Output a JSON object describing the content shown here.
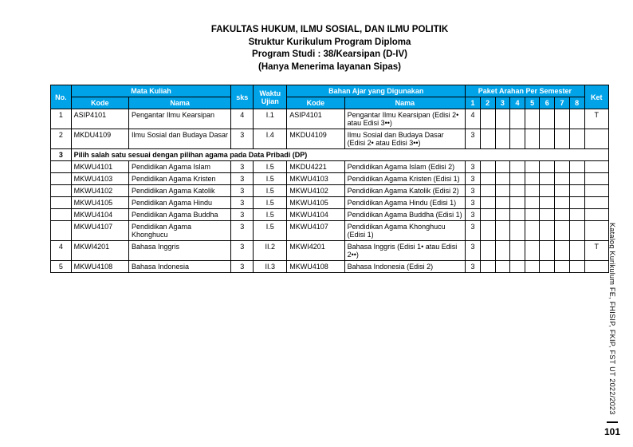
{
  "header": {
    "line1": "FAKULTAS HUKUM, ILMU SOSIAL, DAN ILMU POLITIK",
    "line2": "Struktur Kurikulum Program Diploma",
    "line3": "Program Studi : 38/Kearsipan (D-IV)",
    "line4": "(Hanya Menerima layanan Sipas)"
  },
  "columns": {
    "no": "No.",
    "mata_kuliah": "Mata Kuliah",
    "kode": "Kode",
    "nama": "Nama",
    "sks": "sks",
    "waktu": "Waktu Ujian",
    "bahan": "Bahan Ajar yang Digunakan",
    "paket": "Paket Arahan Per Semester",
    "ket": "Ket",
    "sem": [
      "1",
      "2",
      "3",
      "4",
      "5",
      "6",
      "7",
      "8"
    ]
  },
  "rows": [
    {
      "no": "1",
      "kode1": "ASIP4101",
      "nama1": "Pengantar Ilmu Kearsipan",
      "sks": "4",
      "waktu": "I.1",
      "kode2": "ASIP4101",
      "nama2": "Pengantar Ilmu Kearsipan (Edisi 2• atau Edisi 3••)",
      "sem": [
        "4",
        "",
        "",
        "",
        "",
        "",
        "",
        ""
      ],
      "ket": "T"
    },
    {
      "no": "2",
      "kode1": "MKDU4109",
      "nama1": "Ilmu Sosial dan Budaya Dasar",
      "sks": "3",
      "waktu": "I.4",
      "kode2": "MKDU4109",
      "nama2": "Ilmu Sosial dan Budaya Dasar (Edisi 2• atau Edisi 3••)",
      "sem": [
        "3",
        "",
        "",
        "",
        "",
        "",
        "",
        ""
      ],
      "ket": ""
    },
    {
      "section": "3",
      "label": "Pilih salah satu sesuai dengan pilihan agama pada Data Pribadi (DP)"
    },
    {
      "no": "",
      "kode1": "MKWU4101",
      "nama1": "Pendidikan Agama Islam",
      "sks": "3",
      "waktu": "I.5",
      "kode2": "MKDU4221",
      "nama2": "Pendidikan Agama Islam (Edisi 2)",
      "sem": [
        "3",
        "",
        "",
        "",
        "",
        "",
        "",
        ""
      ],
      "ket": ""
    },
    {
      "no": "",
      "kode1": "MKWU4103",
      "nama1": "Pendidikan Agama Kristen",
      "sks": "3",
      "waktu": "I.5",
      "kode2": "MKWU4103",
      "nama2": "Pendidikan Agama Kristen (Edisi 1)",
      "sem": [
        "3",
        "",
        "",
        "",
        "",
        "",
        "",
        ""
      ],
      "ket": ""
    },
    {
      "no": "",
      "kode1": "MKWU4102",
      "nama1": "Pendidikan Agama Katolik",
      "sks": "3",
      "waktu": "I.5",
      "kode2": "MKWU4102",
      "nama2": "Pendidikan Agama Katolik (Edisi 2)",
      "sem": [
        "3",
        "",
        "",
        "",
        "",
        "",
        "",
        ""
      ],
      "ket": ""
    },
    {
      "no": "",
      "kode1": "MKWU4105",
      "nama1": "Pendidikan Agama Hindu",
      "sks": "3",
      "waktu": "I.5",
      "kode2": "MKWU4105",
      "nama2": "Pendidikan Agama Hindu (Edisi 1)",
      "sem": [
        "3",
        "",
        "",
        "",
        "",
        "",
        "",
        ""
      ],
      "ket": ""
    },
    {
      "no": "",
      "kode1": "MKWU4104",
      "nama1": "Pendidikan Agama Buddha",
      "sks": "3",
      "waktu": "I.5",
      "kode2": "MKWU4104",
      "nama2": "Pendidikan Agama Buddha (Edisi 1)",
      "sem": [
        "3",
        "",
        "",
        "",
        "",
        "",
        "",
        ""
      ],
      "ket": ""
    },
    {
      "no": "",
      "kode1": "MKWU4107",
      "nama1": "Pendidikan Agama Khonghucu",
      "sks": "3",
      "waktu": "I.5",
      "kode2": "MKWU4107",
      "nama2": "Pendidikan Agama Khonghucu (Edisi 1)",
      "sem": [
        "3",
        "",
        "",
        "",
        "",
        "",
        "",
        ""
      ],
      "ket": ""
    },
    {
      "no": "4",
      "kode1": "MKWI4201",
      "nama1": "Bahasa Inggris",
      "sks": "3",
      "waktu": "II.2",
      "kode2": "MKWI4201",
      "nama2": "Bahasa Inggris (Edisi 1• atau Edisi 2••)",
      "sem": [
        "3",
        "",
        "",
        "",
        "",
        "",
        "",
        ""
      ],
      "ket": "T"
    },
    {
      "no": "5",
      "kode1": "MKWU4108",
      "nama1": "Bahasa Indonesia",
      "sks": "3",
      "waktu": "II.3",
      "kode2": "MKWU4108",
      "nama2": "Bahasa Indonesia (Edisi 2)",
      "sem": [
        "3",
        "",
        "",
        "",
        "",
        "",
        "",
        ""
      ],
      "ket": ""
    }
  ],
  "sidebar": {
    "text": "Katalog Kurikulum FE, FHISIP, FKIP, FST UT 2022/2023",
    "page": "101"
  },
  "style": {
    "header_bg": "#00a2e8",
    "header_color": "#ffffff",
    "border_color": "#000000",
    "body_font_size": 9
  }
}
